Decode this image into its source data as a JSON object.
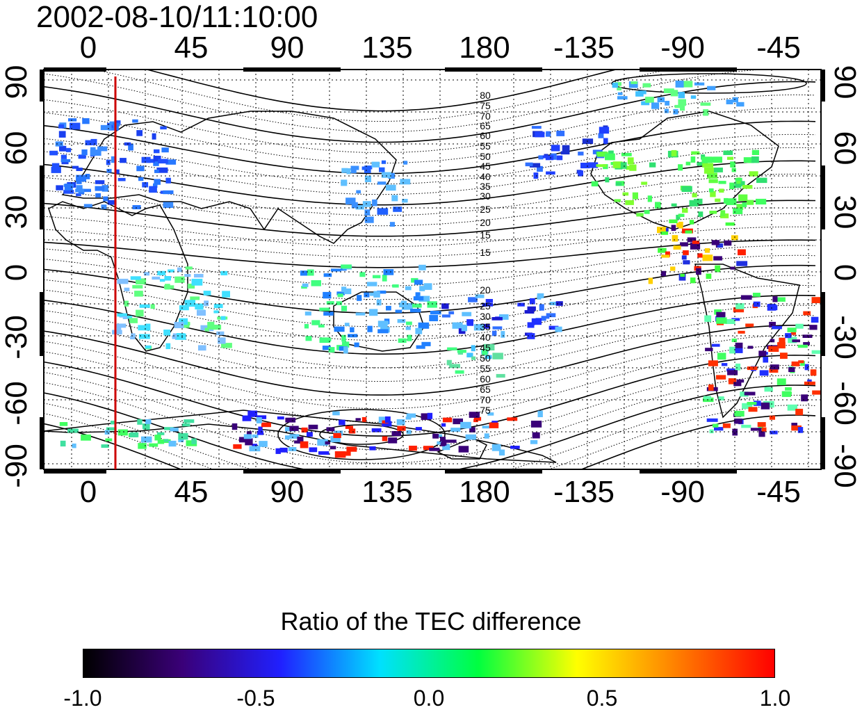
{
  "title": "2002-08-10/11:10:00",
  "map": {
    "top_ticks": [
      "0",
      "45",
      "90",
      "135",
      "180",
      "-135",
      "-90",
      "-45"
    ],
    "bottom_ticks": [
      "0",
      "45",
      "90",
      "135",
      "180",
      "-135",
      "-90",
      "-45"
    ],
    "left_ticks": [
      "90",
      "60",
      "30",
      "0",
      "-30",
      "-60",
      "-90"
    ],
    "right_ticks": [
      "90",
      "60",
      "30",
      "0",
      "-30",
      "-60",
      "-90"
    ],
    "contour_labels": [
      "80",
      "75",
      "70",
      "65",
      "60",
      "55",
      "50",
      "45",
      "40",
      "35",
      "30",
      "25",
      "20",
      "15",
      "15",
      "20",
      "25",
      "30",
      "35",
      "40",
      "45",
      "50",
      "55",
      "60",
      "65",
      "70",
      "75"
    ],
    "meridian_marker_color": "#cc0000"
  },
  "colorbar": {
    "title": "Ratio of the TEC difference",
    "labels": [
      "-1.0",
      "-0.5",
      "0.0",
      "0.5",
      "1.0"
    ],
    "colors": [
      "#000000",
      "#3a0078",
      "#2020ff",
      "#00e0ff",
      "#00ff40",
      "#ffff00",
      "#ff8000",
      "#ff0000"
    ]
  }
}
